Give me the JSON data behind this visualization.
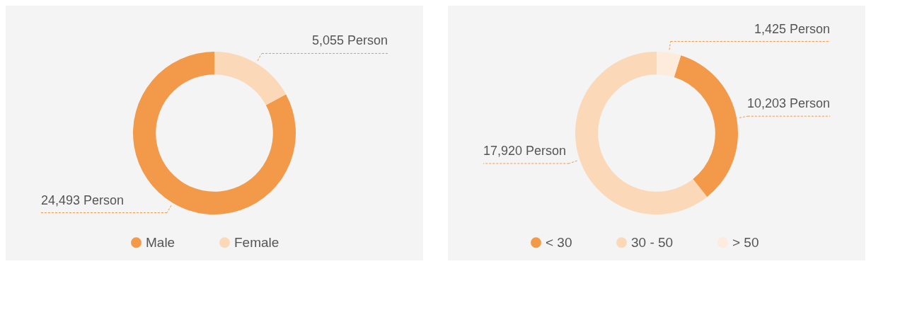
{
  "chart_data": [
    {
      "type": "donut",
      "categories": [
        "Male",
        "Female"
      ],
      "values": [
        24493,
        5055
      ],
      "colors": [
        "#f2994a",
        "#fbd9b8"
      ],
      "value_labels": [
        "24,493 Person",
        "5,055 Person"
      ],
      "legend": "bottom"
    },
    {
      "type": "donut",
      "categories": [
        "< 30",
        "30 - 50",
        "> 50"
      ],
      "values": [
        10203,
        17920,
        1425
      ],
      "colors": [
        "#f2994a",
        "#fbd9b8",
        "#fdebdc"
      ],
      "value_labels": [
        "10,203 Person",
        "17,920 Person",
        "1,425 Person"
      ],
      "legend": "bottom"
    }
  ]
}
